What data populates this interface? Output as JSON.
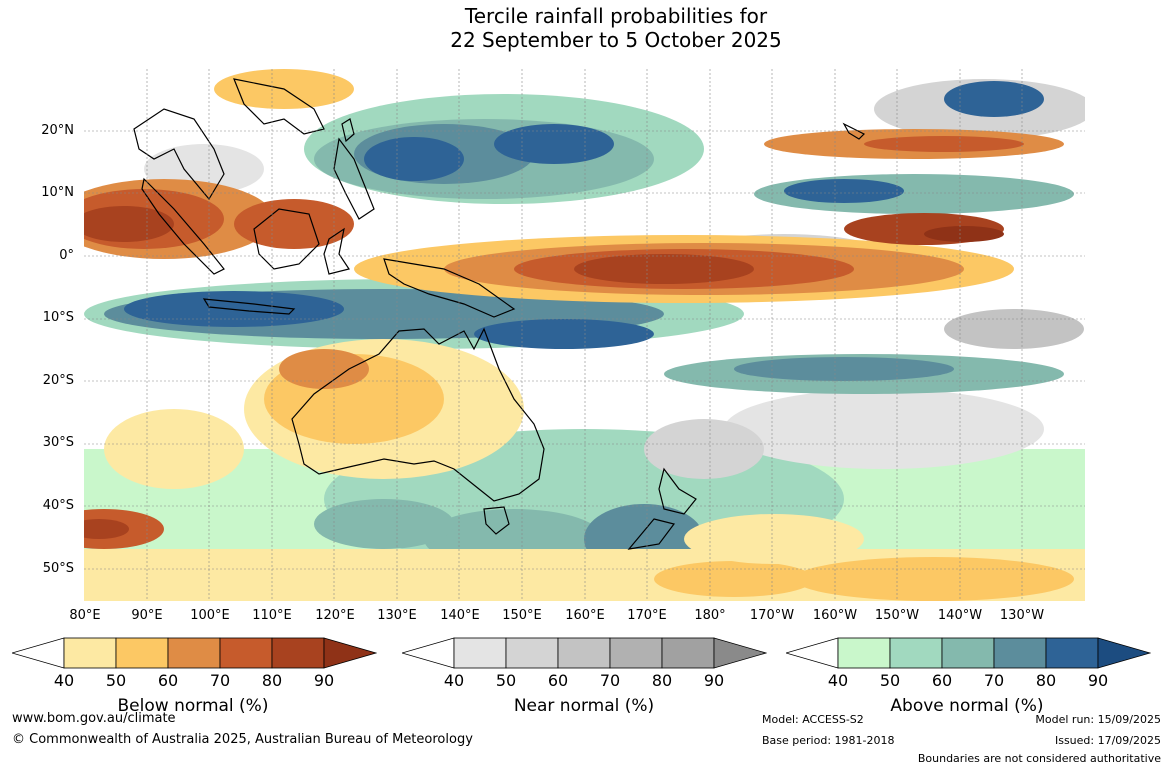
{
  "title": {
    "line1": "Tercile rainfall probabilities for",
    "line2": "22 September to 5 October 2025"
  },
  "axes": {
    "lat_labels": [
      "20°N",
      "10°N",
      "0°",
      "10°S",
      "20°S",
      "30°S",
      "40°S",
      "50°S"
    ],
    "lon_labels": [
      "80°E",
      "90°E",
      "100°E",
      "110°E",
      "120°E",
      "130°E",
      "140°E",
      "150°E",
      "160°E",
      "170°E",
      "180°",
      "170°W",
      "160°W",
      "150°W",
      "140°W",
      "130°W"
    ]
  },
  "legends": [
    {
      "title": "Below normal (%)",
      "ticks": [
        "40",
        "50",
        "60",
        "70",
        "80",
        "90"
      ],
      "colors": [
        "#ffffff",
        "#fde9a3",
        "#fcc864",
        "#df8c45",
        "#c65b2c",
        "#a8421f",
        "#8f3217"
      ]
    },
    {
      "title": "Near normal (%)",
      "ticks": [
        "40",
        "50",
        "60",
        "70",
        "80",
        "90"
      ],
      "colors": [
        "#ffffff",
        "#e4e4e4",
        "#d4d4d4",
        "#c3c3c3",
        "#b1b1b1",
        "#a1a1a1",
        "#8a8a8a"
      ]
    },
    {
      "title": "Above normal (%)",
      "ticks": [
        "40",
        "50",
        "60",
        "70",
        "80",
        "90"
      ],
      "colors": [
        "#ffffff",
        "#c9f7cb",
        "#a1d9bf",
        "#84b9ad",
        "#5c8d9c",
        "#2e6396",
        "#1c4c80"
      ]
    }
  ],
  "footer": {
    "website": "www.bom.gov.au/climate",
    "copyright": "© Commonwealth of Australia 2025, Australian Bureau of Meteorology",
    "model": "Model: ACCESS-S2",
    "base_period": "Base period: 1981-2018",
    "model_run": "Model run: 15/09/2025",
    "issued": "Issued: 17/09/2025",
    "disclaimer": "Boundaries are not considered authoritative"
  }
}
